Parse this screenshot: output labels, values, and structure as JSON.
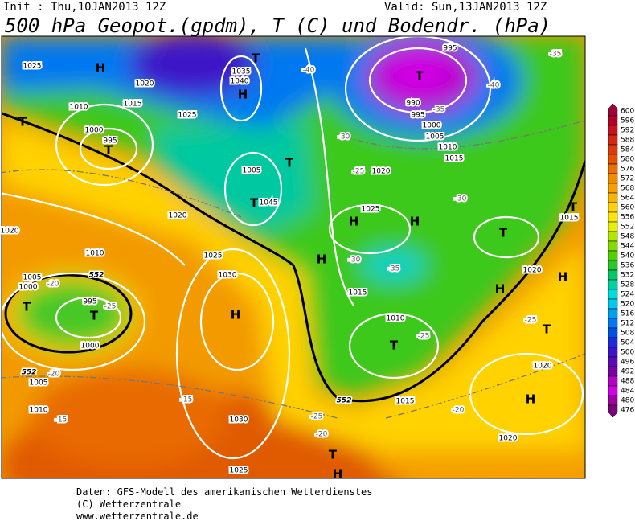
{
  "header": {
    "init": "Init : Thu,10JAN2013 12Z",
    "valid": "Valid: Sun,13JAN2013 12Z",
    "title": "500 hPa Geopot.(gpdm), T (C) und Bodendr. (hPa)"
  },
  "map": {
    "labels": [
      "H",
      "T",
      "H",
      "T",
      "995",
      "990",
      "995",
      "1000",
      "1005",
      "1010",
      "1015",
      "T",
      "T",
      "995",
      "1000",
      "1010",
      "1015",
      "1020",
      "1025",
      "1025",
      "1035",
      "1040",
      "T",
      "T",
      "1045",
      "1005",
      "H",
      "H",
      "1025",
      "1020",
      "T",
      "T",
      "1015",
      "H",
      "1015",
      "1010",
      "T",
      "H",
      "H",
      "1020",
      "T",
      "H",
      "1020",
      "1020",
      "H",
      "1030",
      "1025",
      "1030",
      "1025",
      "T",
      "T",
      "995",
      "1000",
      "1005",
      "1000",
      "1010",
      "1020",
      "1005",
      "1010",
      "1020",
      "T",
      "H",
      "1015",
      "552",
      "552",
      "552",
      "-40",
      "-35",
      "-40",
      "-35",
      "-30",
      "-25",
      "-30",
      "-30",
      "-35",
      "-25",
      "-20",
      "-15",
      "-20",
      "-20",
      "-25",
      "-15",
      "-25",
      "-25",
      "-20"
    ]
  },
  "colorbar": {
    "levels": [
      600,
      596,
      592,
      588,
      584,
      580,
      576,
      572,
      568,
      564,
      560,
      556,
      552,
      548,
      544,
      540,
      536,
      532,
      528,
      524,
      520,
      516,
      512,
      508,
      504,
      500,
      496,
      492,
      488,
      484,
      480,
      476
    ],
    "colors": [
      "#a0003c",
      "#b40028",
      "#c8141e",
      "#d22814",
      "#dc3c0a",
      "#e65000",
      "#eb6e00",
      "#f08c00",
      "#f5a000",
      "#fab400",
      "#ffd200",
      "#ffe600",
      "#e6f000",
      "#b4e600",
      "#82dc00",
      "#50d200",
      "#28c828",
      "#00c864",
      "#00d2a0",
      "#00dcdc",
      "#00c8f0",
      "#00a0f0",
      "#0078f0",
      "#0050e6",
      "#1e28dc",
      "#3c14c8",
      "#5a0ab4",
      "#7800a0",
      "#b400c8",
      "#d200e6",
      "#a000a0",
      "#780078"
    ]
  },
  "footer": {
    "lines": [
      "Daten: GFS-Modell des amerikanischen Wetterdienstes",
      "(C) Wetterzentrale",
      "www.wetterzentrale.de"
    ]
  }
}
